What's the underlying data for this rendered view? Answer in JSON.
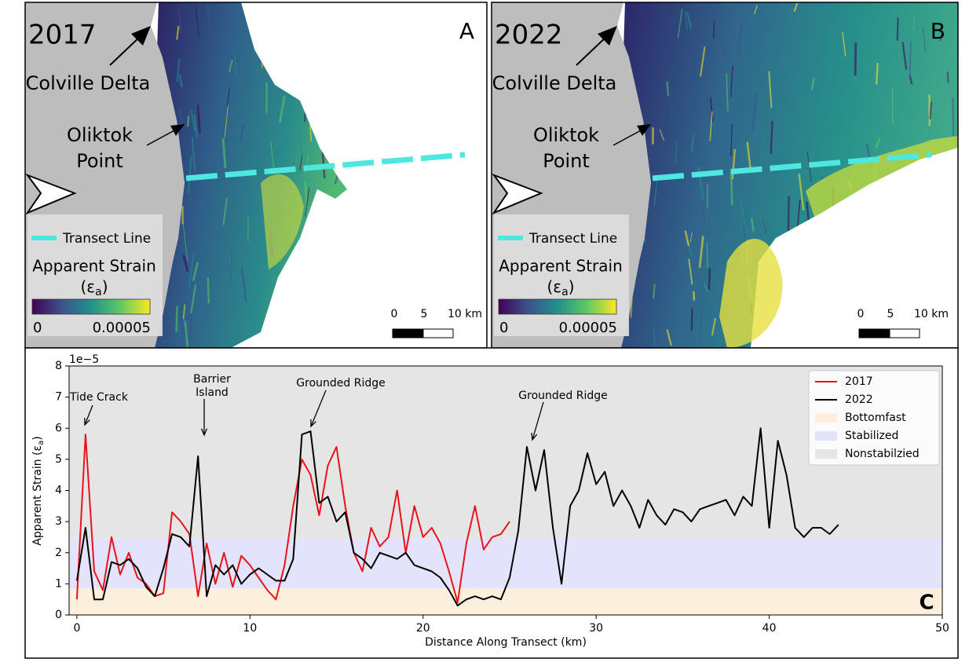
{
  "maps": [
    {
      "year": "2017",
      "letter": "A",
      "colville": "Colville Delta",
      "oliktok": [
        "Oliktok",
        "Point"
      ],
      "legend": {
        "transect": "Transect Line",
        "strain_title": "Apparent Strain",
        "strain_symbol": "(ε",
        "strain_sub": "a",
        "strain_end": ")",
        "cbar_min": "0",
        "cbar_max": "0.00005"
      },
      "scale": [
        "0",
        "5",
        "10 km"
      ]
    },
    {
      "year": "2022",
      "letter": "B",
      "colville": "Colville Delta",
      "oliktok": [
        "Oliktok",
        "Point"
      ],
      "legend": {
        "transect": "Transect Line",
        "strain_title": "Apparent Strain",
        "strain_symbol": "(ε",
        "strain_sub": "a",
        "strain_end": ")",
        "cbar_min": "0",
        "cbar_max": "0.00005"
      },
      "scale": [
        "0",
        "5",
        "10 km"
      ]
    }
  ],
  "chart_data": {
    "type": "line",
    "panel_letter": "C",
    "xlabel": "Distance Along Transect (km)",
    "ylabel": {
      "text": "Apparent Strain (ε",
      "sub": "a",
      "end": ")"
    },
    "y_offset_label": "1e−5",
    "xlim": [
      -0.45,
      50
    ],
    "xticks": [
      0,
      10,
      20,
      30,
      40,
      50
    ],
    "ylim": [
      0,
      8
    ],
    "yticks": [
      0,
      1,
      2,
      3,
      4,
      5,
      6,
      7,
      8
    ],
    "legend_position": "upper right",
    "regions": [
      {
        "name": "Bottomfast",
        "color": "#fcefdc",
        "range": [
          0,
          0.85
        ]
      },
      {
        "name": "Stabilized",
        "color": "#e3e3fb",
        "range": [
          0.85,
          2.45
        ]
      },
      {
        "name": "Nonstabilzied",
        "color": "#e5e5e5",
        "range": [
          2.45,
          8
        ]
      }
    ],
    "annotations": [
      {
        "text": [
          "Tide Crack"
        ]
      },
      {
        "text": [
          "Barrier",
          "Island"
        ]
      },
      {
        "text": [
          "Grounded Ridge"
        ]
      },
      {
        "text": [
          "Grounded Ridge"
        ]
      }
    ],
    "x": [
      0,
      0.5,
      1,
      1.5,
      2,
      2.5,
      3,
      3.5,
      4,
      4.5,
      5,
      5.5,
      6,
      6.5,
      7,
      7.5,
      8,
      8.5,
      9,
      9.5,
      10,
      10.5,
      11,
      11.5,
      12,
      12.5,
      13,
      13.5,
      14,
      14.5,
      15,
      15.5,
      16,
      16.5,
      17,
      17.5,
      18,
      18.5,
      19,
      19.5,
      20,
      20.5,
      21,
      21.5,
      22,
      22.5,
      23,
      23.5,
      24,
      24.5,
      25,
      25.5,
      26,
      26.5,
      27,
      27.5,
      28,
      28.5,
      29,
      29.5,
      30,
      30.5,
      31,
      31.5,
      32,
      32.5,
      33,
      33.5,
      34,
      34.5,
      35,
      35.5,
      36,
      36.5,
      37,
      37.5,
      38,
      38.5,
      39,
      39.5,
      40,
      40.5,
      41,
      41.5,
      42,
      42.5,
      43,
      43.5,
      44
    ],
    "series": [
      {
        "name": "2017",
        "color": "#e8141a",
        "values": [
          0.5,
          5.8,
          1.4,
          0.8,
          2.5,
          1.3,
          2.0,
          1.2,
          1.0,
          0.6,
          0.7,
          3.3,
          3.0,
          2.6,
          0.6,
          2.3,
          1.0,
          2.0,
          0.9,
          1.9,
          1.6,
          1.2,
          0.8,
          0.5,
          1.6,
          3.5,
          5.0,
          4.5,
          3.2,
          4.8,
          5.4,
          3.5,
          2.0,
          1.4,
          2.8,
          2.2,
          2.5,
          4.0,
          2.0,
          3.5,
          2.5,
          2.8,
          2.3,
          1.4,
          0.4,
          2.3,
          3.5,
          2.1,
          2.5,
          2.6,
          3.0,
          null,
          null,
          null,
          null,
          null,
          null,
          null,
          null,
          null,
          null,
          null,
          null,
          null,
          null,
          null,
          null,
          null,
          null,
          null,
          null,
          null,
          null,
          null,
          null,
          null,
          null,
          null,
          null,
          null,
          null,
          null,
          null,
          null,
          null,
          null,
          null,
          null,
          null
        ]
      },
      {
        "name": "2022",
        "color": "#000000",
        "values": [
          1.1,
          2.8,
          0.5,
          0.5,
          1.7,
          1.6,
          1.8,
          1.5,
          0.9,
          0.6,
          1.5,
          2.6,
          2.5,
          2.2,
          5.1,
          0.6,
          1.6,
          1.3,
          1.6,
          1.0,
          1.3,
          1.5,
          1.3,
          1.1,
          1.1,
          1.8,
          5.8,
          5.9,
          3.6,
          3.8,
          3.0,
          3.3,
          2.0,
          1.8,
          1.5,
          2.0,
          1.9,
          1.8,
          2.0,
          1.6,
          1.5,
          1.4,
          1.2,
          0.8,
          0.3,
          0.5,
          0.6,
          0.5,
          0.6,
          0.5,
          1.2,
          2.7,
          5.4,
          4.0,
          5.3,
          2.8,
          1.0,
          3.5,
          4.0,
          5.2,
          4.2,
          4.6,
          3.5,
          4.0,
          3.5,
          2.8,
          3.7,
          3.2,
          2.9,
          3.4,
          3.3,
          3.0,
          3.4,
          3.5,
          3.6,
          3.7,
          3.2,
          3.8,
          3.5,
          6.0,
          2.8,
          5.6,
          4.5,
          2.8,
          2.5,
          2.8,
          2.8,
          2.6,
          2.9
        ]
      }
    ]
  }
}
